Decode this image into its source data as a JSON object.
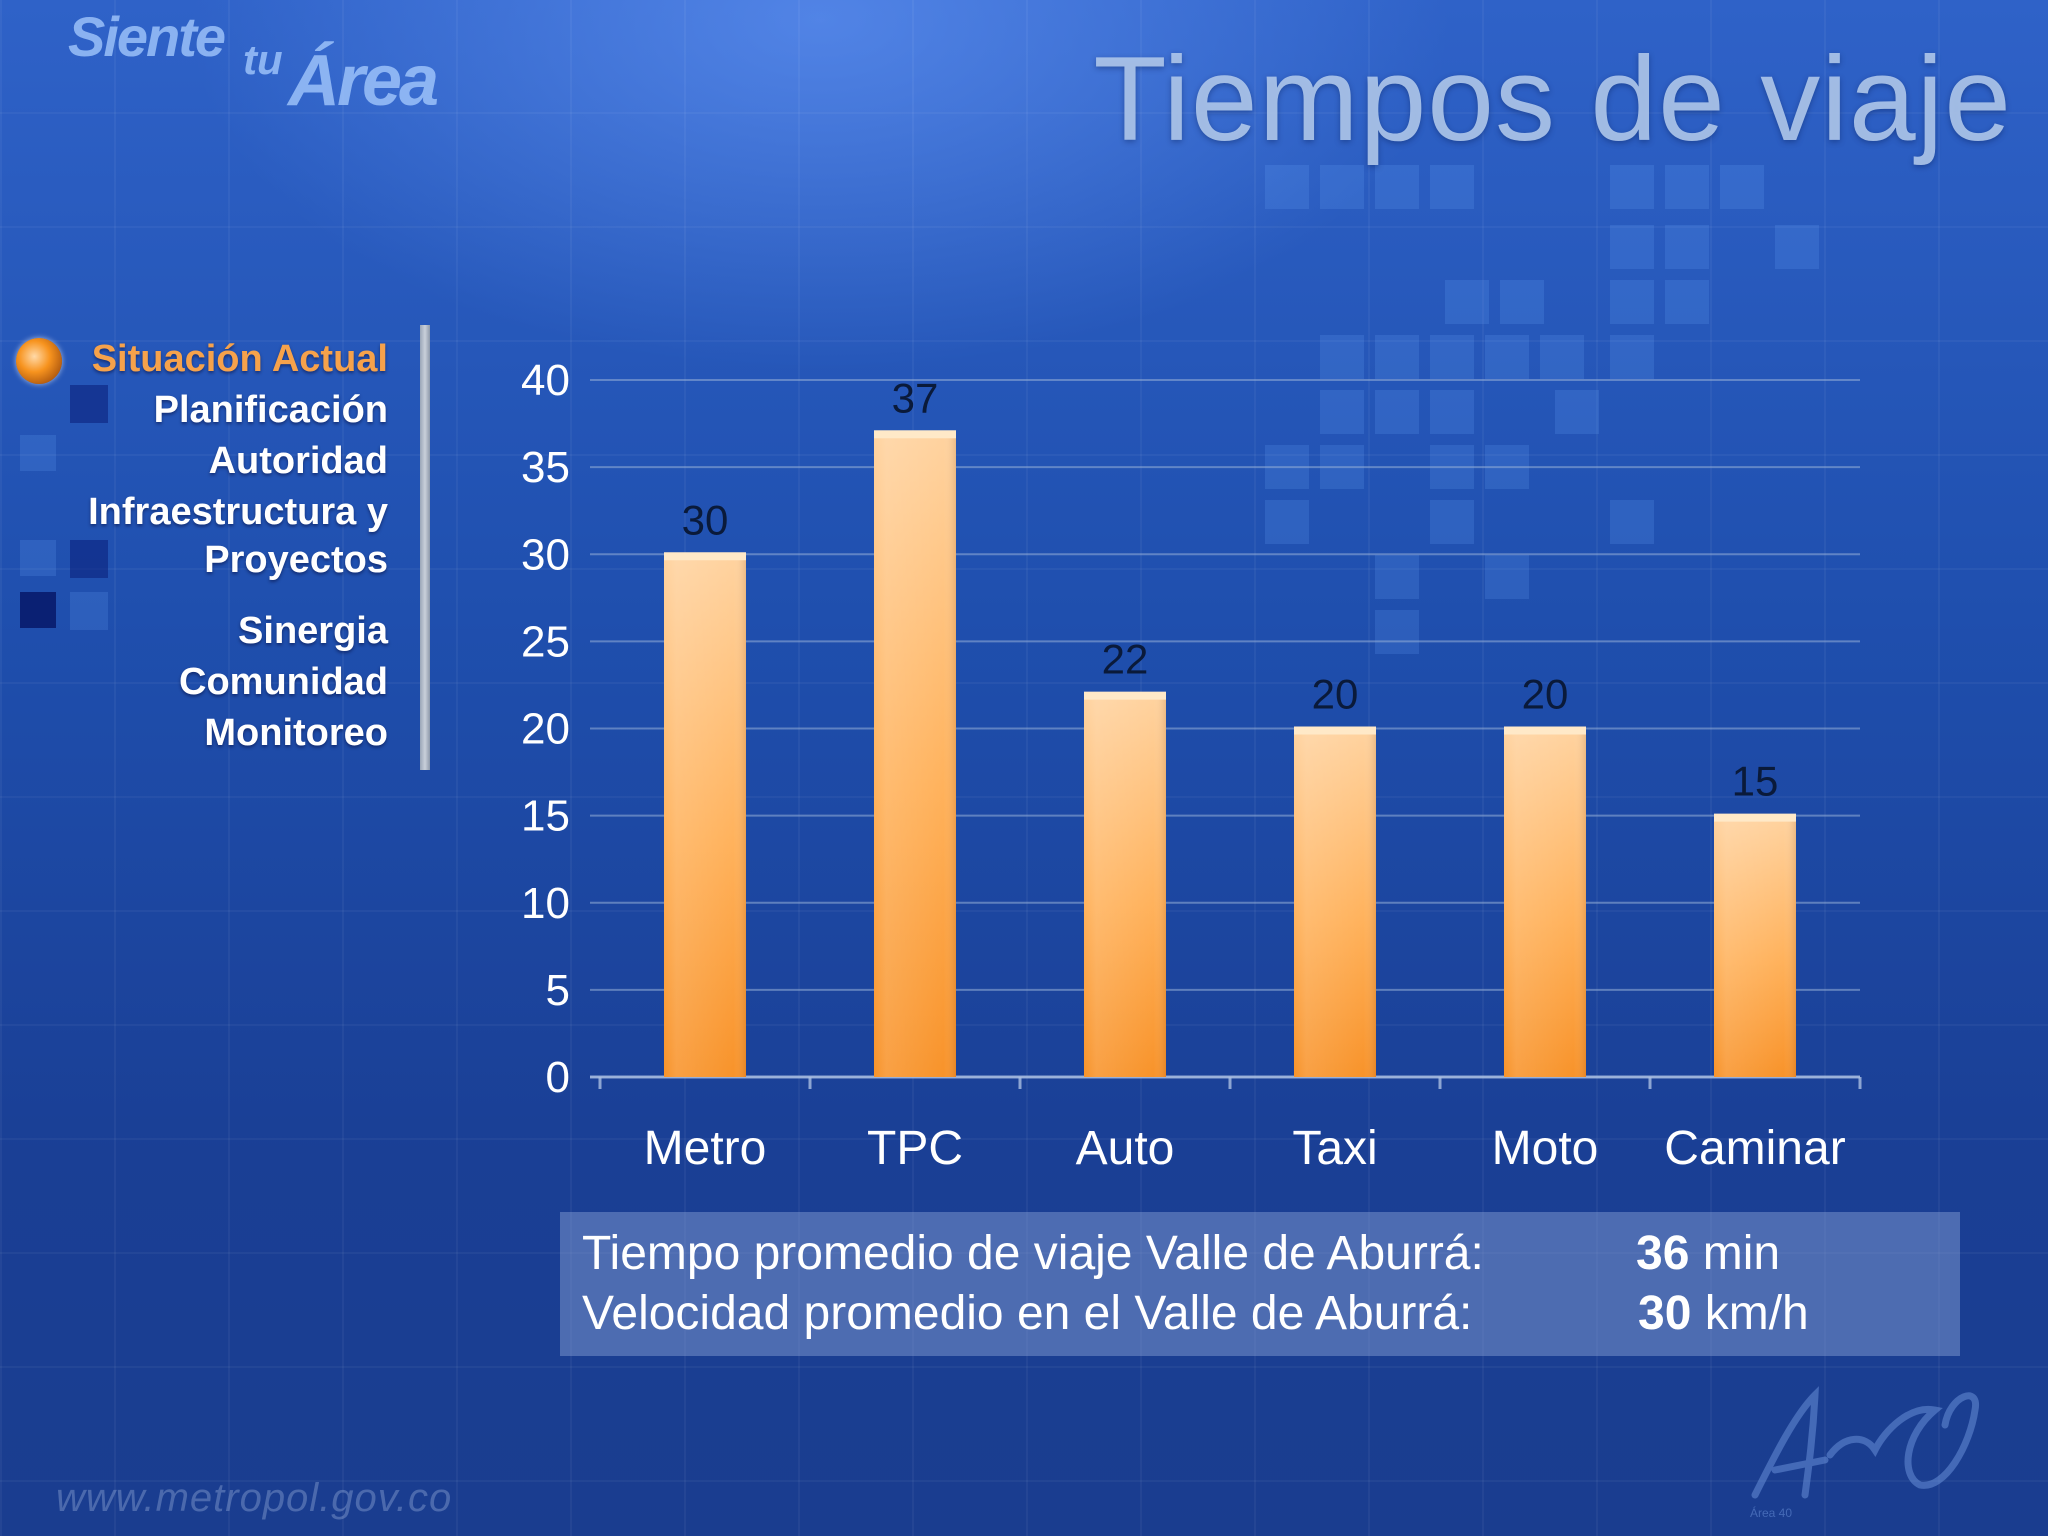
{
  "logo": {
    "line1": "Siente",
    "line2": "tu",
    "line3": "Área"
  },
  "page_title": "Tiempos de viaje",
  "nav": {
    "items": [
      {
        "label": "Situación Actual",
        "active": true
      },
      {
        "label": "Planificación",
        "active": false
      },
      {
        "label": "Autoridad",
        "active": false
      },
      {
        "label": "Infraestructura y",
        "active": false
      },
      {
        "label": "Proyectos",
        "active": false
      },
      {
        "label": "Sinergia",
        "active": false
      },
      {
        "label": "Comunidad",
        "active": false
      },
      {
        "label": "Monitoreo",
        "active": false
      }
    ]
  },
  "chart_data": {
    "type": "bar",
    "title": "",
    "xlabel": "",
    "ylabel": "",
    "categories": [
      "Metro",
      "TPC",
      "Auto",
      "Taxi",
      "Moto",
      "Caminar"
    ],
    "values": [
      30,
      37,
      22,
      20,
      20,
      15
    ],
    "ylim": [
      0,
      40
    ],
    "yticks": [
      0,
      5,
      10,
      15,
      20,
      25,
      30,
      35,
      40
    ],
    "grid": true,
    "data_labels": true,
    "bar_color": "#f9a03f",
    "bar_color_top": "#ffd9a6"
  },
  "info": {
    "rows": [
      {
        "label": "Tiempo promedio de viaje Valle de Aburrá:",
        "value": "36",
        "unit": " min"
      },
      {
        "label": "Velocidad promedio en el Valle de Aburrá:",
        "value": "30",
        "unit": " km/h"
      }
    ]
  },
  "footer": {
    "url": "www.metropol.gov.co",
    "logo_text": "Área 40"
  },
  "colors": {
    "accent_active": "#f6a24b",
    "text": "#ffffff",
    "axis_text": "#ffffff"
  }
}
